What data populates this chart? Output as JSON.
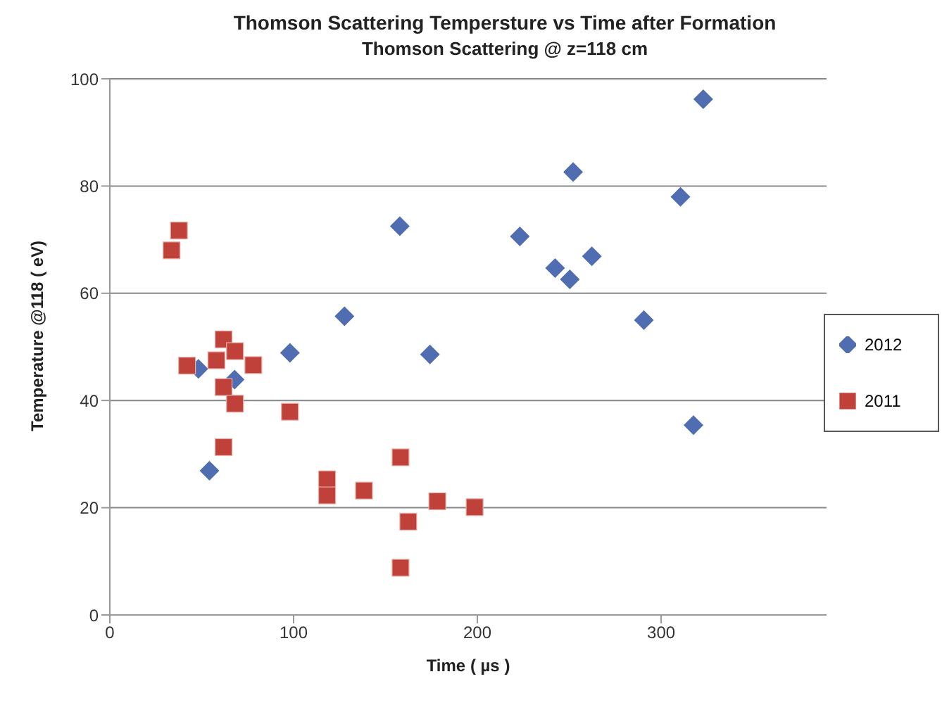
{
  "chart_data": {
    "type": "scatter",
    "title": "Thomson  Scattering Tempersture vs Time after Formation",
    "subtitle": "Thomson Scattering @ z=118 cm",
    "xlabel": "Time ( µs )",
    "ylabel": "Temperature @118 ( eV)",
    "xlim": [
      0,
      390
    ],
    "xticks": [
      0,
      100,
      200,
      300
    ],
    "ylim": [
      0,
      100
    ],
    "yticks": [
      0,
      20,
      40,
      60,
      80,
      100
    ],
    "grid": "y",
    "legend": "right",
    "series": [
      {
        "name": "2012",
        "color": "#4f6db0",
        "marker": "diamond",
        "x": [
          48.2,
          67.9,
          54.2,
          98.0,
          127.7,
          157.8,
          174.2,
          223.1,
          242.3,
          250.3,
          252.1,
          262.3,
          290.6,
          310.5,
          322.9,
          317.6
        ],
        "values": [
          45.9,
          43.9,
          26.9,
          48.9,
          55.7,
          72.5,
          48.6,
          70.6,
          64.7,
          62.6,
          82.6,
          66.9,
          55.0,
          78.0,
          96.2,
          35.4
        ]
      },
      {
        "name": "2011",
        "color": "#c0413a",
        "marker": "square",
        "x": [
          37.6,
          33.6,
          42.0,
          61.9,
          68.1,
          58.0,
          78.1,
          61.9,
          68.1,
          98.0,
          61.9,
          118.2,
          118.2,
          158.2,
          138.3,
          178.2,
          198.5,
          162.4,
          158.2
        ],
        "values": [
          71.7,
          68.0,
          46.5,
          51.4,
          49.2,
          47.5,
          46.6,
          42.5,
          39.4,
          37.9,
          31.3,
          25.3,
          22.3,
          29.4,
          23.2,
          21.2,
          20.1,
          17.4,
          8.8
        ]
      }
    ]
  }
}
